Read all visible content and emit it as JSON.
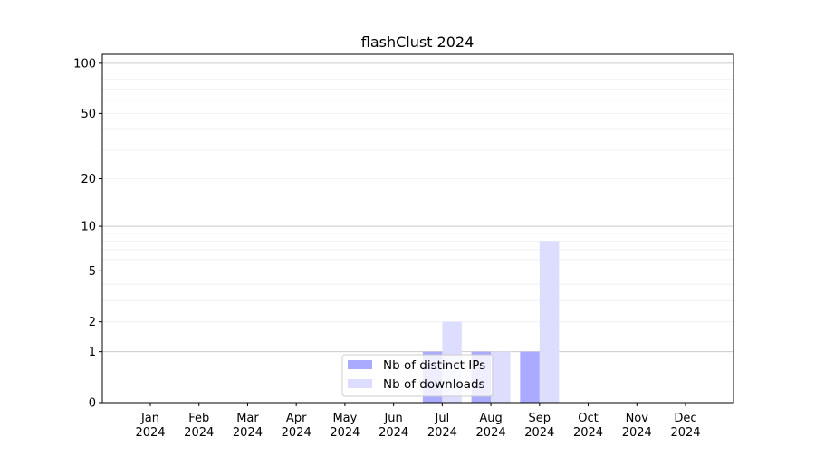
{
  "chart_data": {
    "type": "bar",
    "title": "flashClust 2024",
    "xlabel": "",
    "ylabel": "",
    "yscale": "log10(1+y)",
    "ylim": [
      0,
      113
    ],
    "grid": true,
    "legend_placement": "lower-center",
    "categories": [
      "Jan\n2024",
      "Feb\n2024",
      "Mar\n2024",
      "Apr\n2024",
      "May\n2024",
      "Jun\n2024",
      "Jul\n2024",
      "Aug\n2024",
      "Sep\n2024",
      "Oct\n2024",
      "Nov\n2024",
      "Dec\n2024"
    ],
    "yticks": [
      0,
      1,
      2,
      5,
      10,
      20,
      50,
      100
    ],
    "series": [
      {
        "name": "Nb of distinct IPs",
        "color": "#aaaaff",
        "values": [
          0,
          0,
          0,
          0,
          0,
          0,
          1,
          1,
          1,
          0,
          0,
          0
        ]
      },
      {
        "name": "Nb of downloads",
        "color": "#ddddff",
        "values": [
          0,
          0,
          0,
          0,
          0,
          0,
          2,
          1,
          8,
          0,
          0,
          0
        ]
      }
    ]
  }
}
